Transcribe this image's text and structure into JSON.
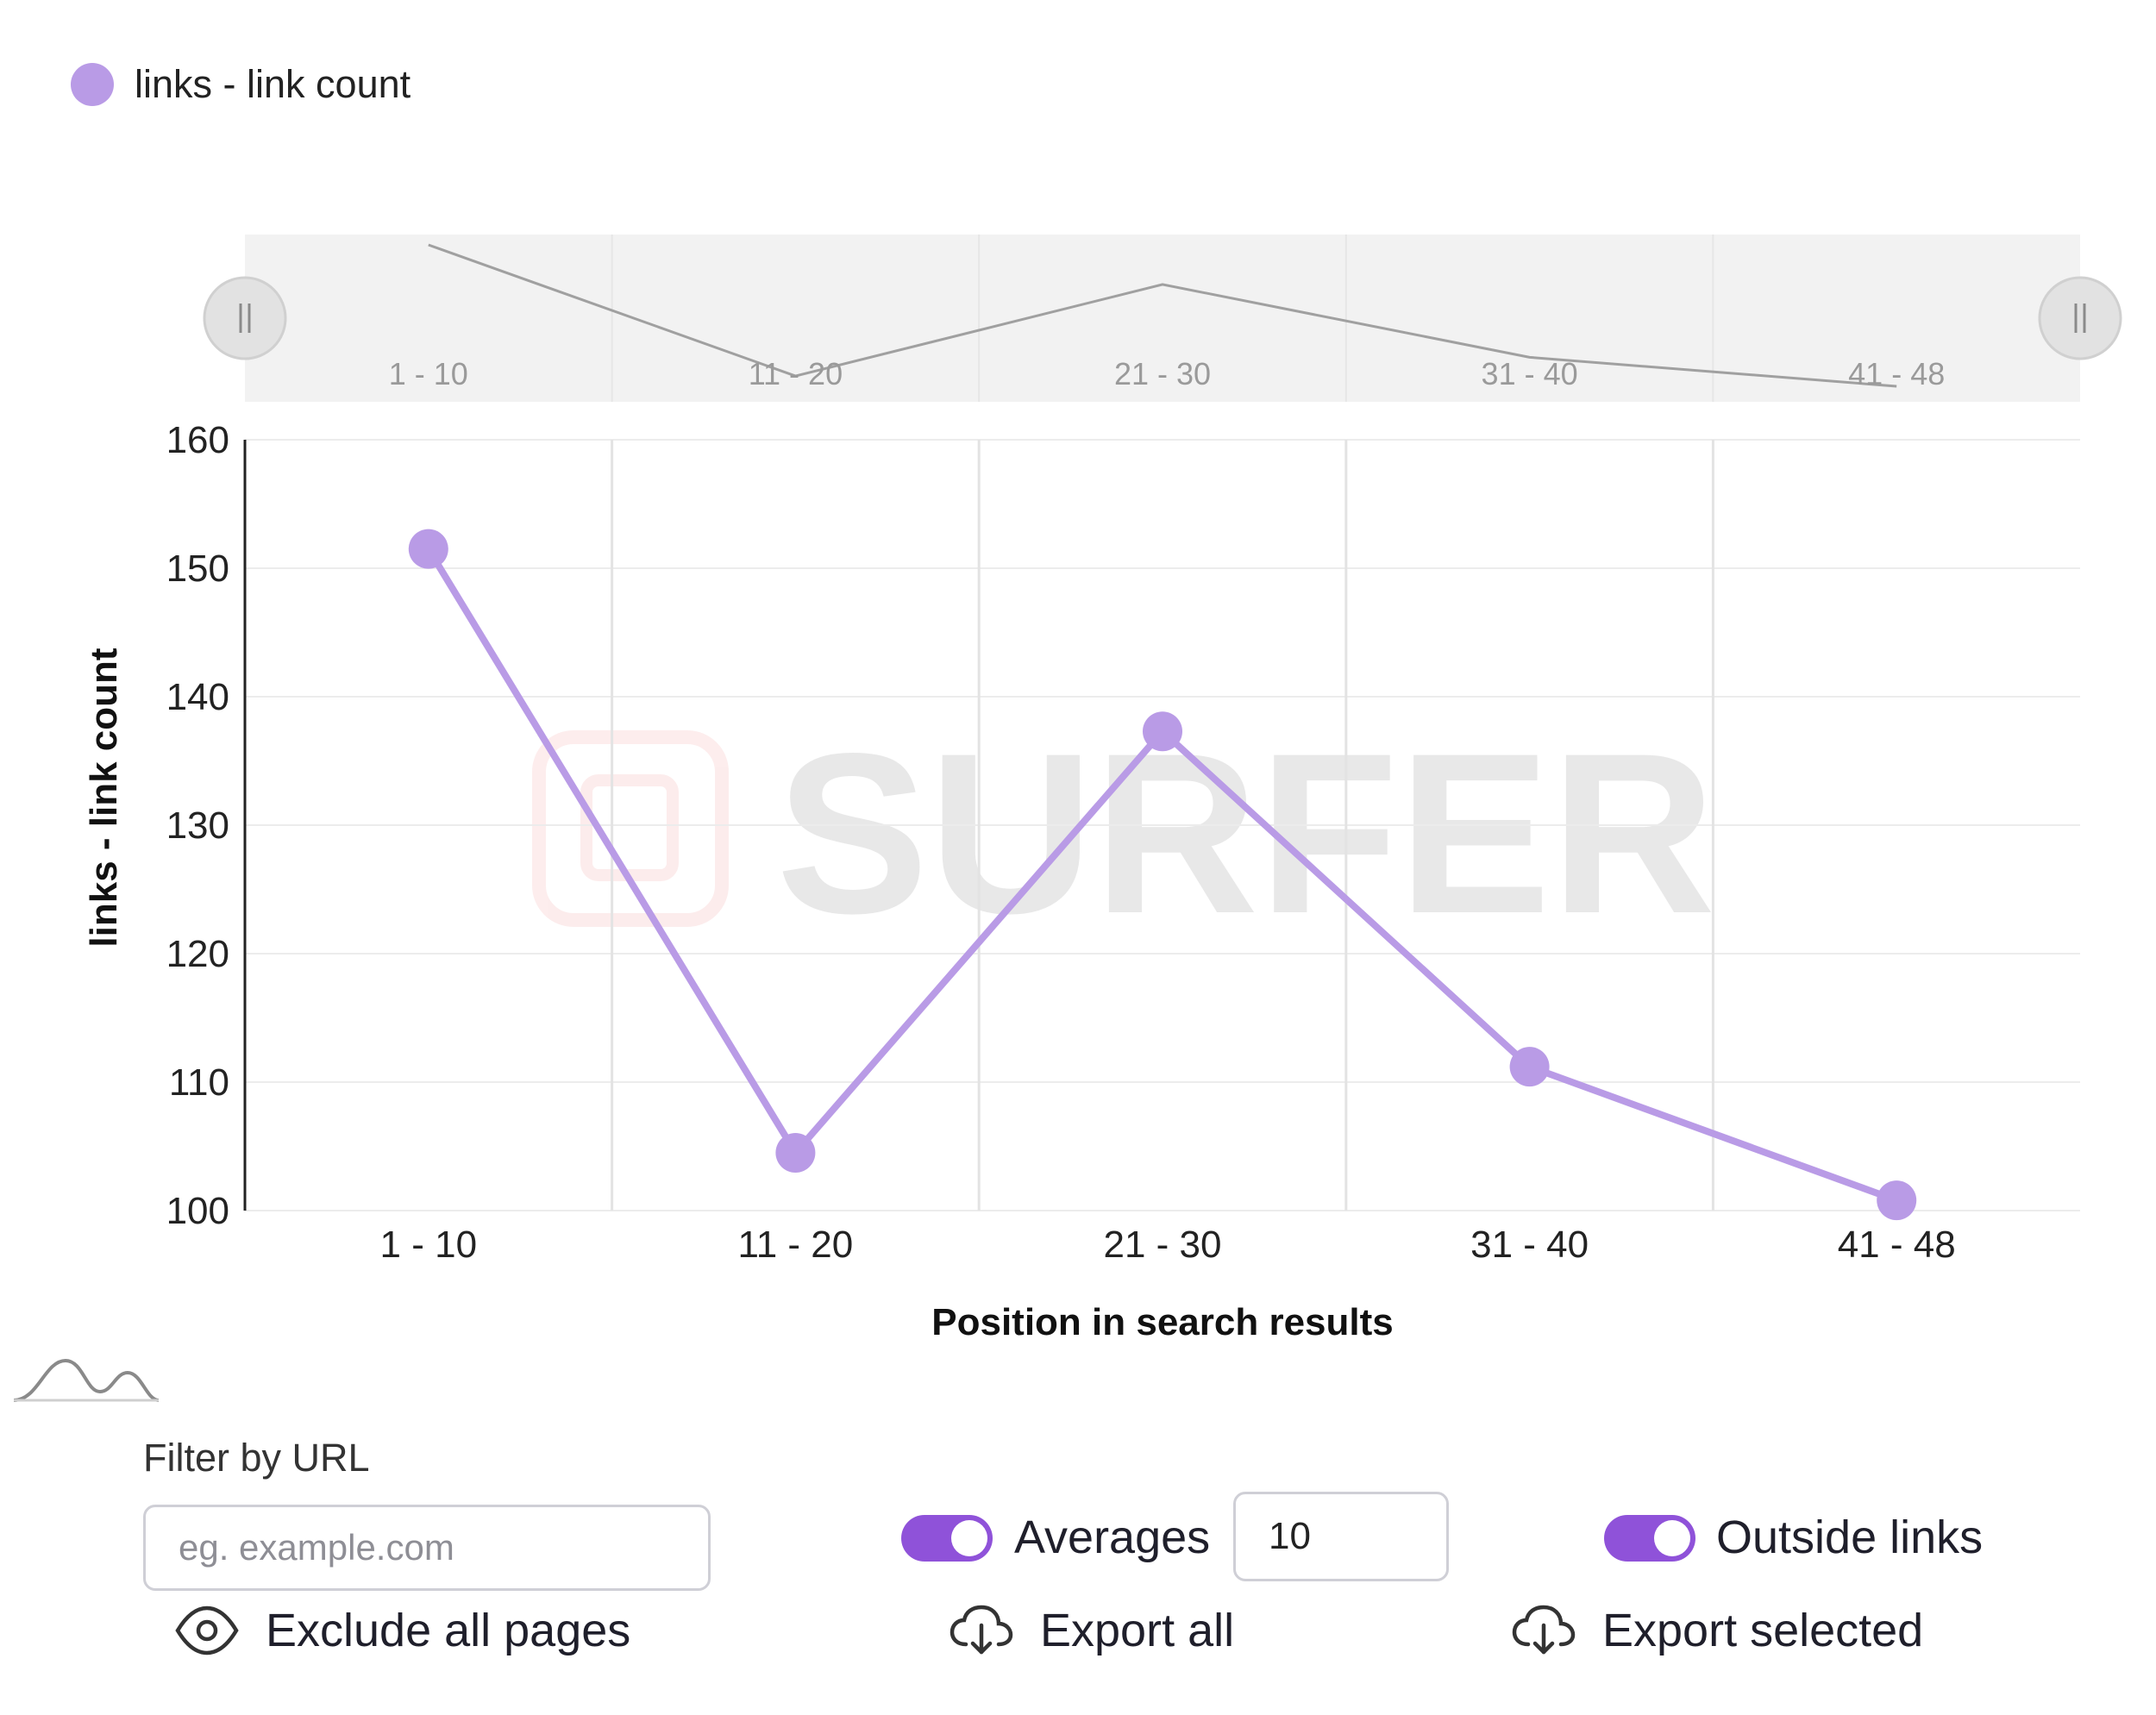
{
  "legend": {
    "label": "links - link count",
    "color": "#b99be6"
  },
  "navigator": {
    "handle_left": "pause-handle-icon",
    "handle_right": "pause-handle-icon"
  },
  "watermark": {
    "text": "SURFER"
  },
  "chart_data": {
    "type": "line",
    "categories": [
      "1 - 10",
      "11 - 20",
      "21 - 30",
      "31 - 40",
      "41 - 48"
    ],
    "series": [
      {
        "name": "links - link count",
        "values": [
          151.5,
          104.5,
          137.3,
          111.2,
          100.8
        ],
        "color": "#b99be6"
      }
    ],
    "xlabel": "Position in search results",
    "ylabel": "links - link count",
    "ylim": [
      100,
      160
    ],
    "yticks": [
      100,
      110,
      120,
      130,
      140,
      150,
      160
    ],
    "grid": true
  },
  "controls": {
    "filter_label": "Filter by URL",
    "filter_placeholder": "eg. example.com",
    "filter_value": "",
    "averages_label": "Averages",
    "averages_enabled": true,
    "averages_value": "10",
    "outside_links_label": "Outside links",
    "outside_links_enabled": true,
    "exclude_label": "Exclude all pages",
    "export_all_label": "Export all",
    "export_selected_label": "Export selected",
    "distribution_icon": "distribution-curve-icon",
    "accent_color": "#8f52d9"
  }
}
